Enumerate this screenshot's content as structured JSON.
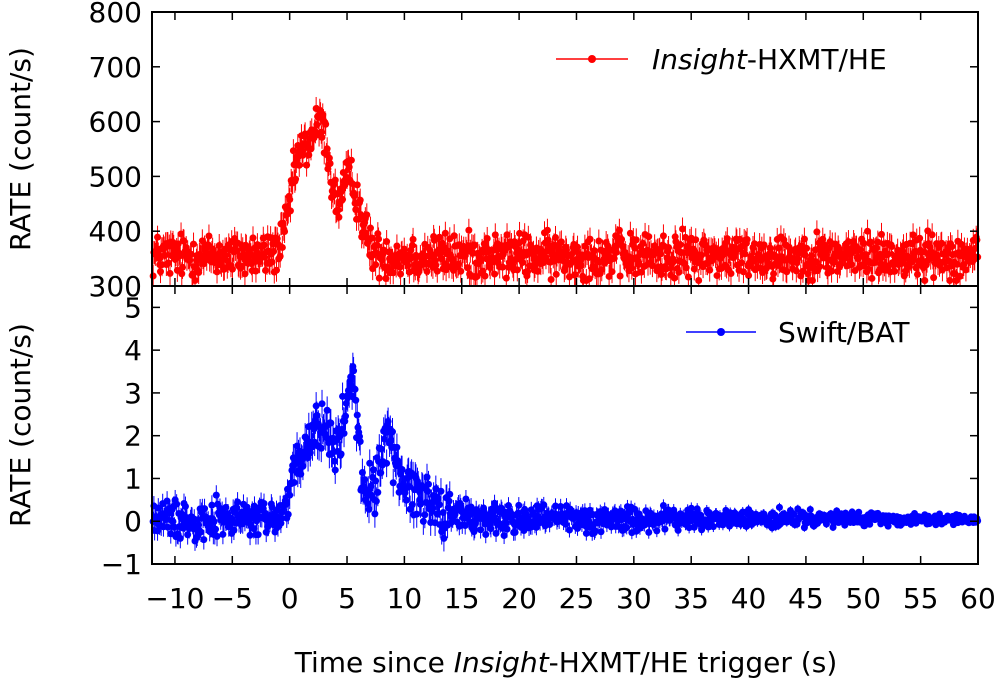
{
  "figure": {
    "xlabel_prefix": "Time since ",
    "xlabel_italic": "Insight",
    "xlabel_suffix": "-HXMT/HE trigger (s)"
  },
  "chart_data": [
    {
      "type": "scatter",
      "panel": "top",
      "series": [
        {
          "name": "Insight-HXMT/HE",
          "color": "#ff0000",
          "legend_italic": "Insight",
          "legend_rest": "-HXMT/HE",
          "baseline": 355,
          "noise": 20,
          "components": [
            [
              2.7,
              1.5,
              240
            ],
            [
              5.5,
              0.8,
              90
            ],
            [
              0.6,
              0.6,
              80
            ],
            [
              4.0,
              0.5,
              -80
            ]
          ]
        }
      ],
      "ylabel": "RATE (count/s)",
      "xlim": [
        -12,
        60
      ],
      "ylim": [
        300,
        800
      ],
      "yticks": [
        300,
        400,
        500,
        600,
        700,
        800
      ],
      "legend_position": "top-right"
    },
    {
      "type": "scatter",
      "panel": "bottom",
      "series": [
        {
          "name": "Swift/BAT",
          "color": "#0000ff",
          "legend_label": "Swift/BAT",
          "baseline": 0.05,
          "noise": 0.22,
          "components": [
            [
              2.6,
              1.2,
              2.2
            ],
            [
              5.5,
              0.5,
              2.3
            ],
            [
              4.8,
              0.6,
              1.0
            ],
            [
              8.5,
              0.6,
              1.2
            ],
            [
              9.5,
              2.5,
              0.8
            ],
            [
              0.5,
              0.6,
              0.6
            ]
          ]
        }
      ],
      "ylabel": "RATE (count/s)",
      "xlim": [
        -12,
        60
      ],
      "ylim": [
        -1,
        5.5
      ],
      "xticks": [
        -10,
        -5,
        0,
        5,
        10,
        15,
        20,
        25,
        30,
        35,
        40,
        45,
        50,
        55,
        60
      ],
      "yticks": [
        -1,
        0,
        1,
        2,
        3,
        4,
        5
      ],
      "legend_position": "top-right"
    }
  ]
}
